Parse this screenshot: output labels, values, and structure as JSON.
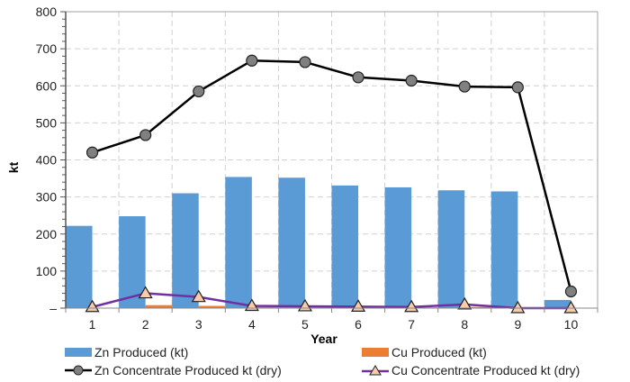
{
  "chart_data": {
    "type": "bar",
    "title": "",
    "xlabel": "Year",
    "ylabel": "kt",
    "ylim": [
      0,
      800
    ],
    "yticks": [
      0,
      100,
      200,
      300,
      400,
      500,
      600,
      700,
      800
    ],
    "ytick_labels": [
      "–",
      "100",
      "200",
      "300",
      "400",
      "500",
      "600",
      "700",
      "800"
    ],
    "categories": [
      "1",
      "2",
      "3",
      "4",
      "5",
      "6",
      "7",
      "8",
      "9",
      "10"
    ],
    "grid": true,
    "legend_position": "bottom",
    "series": [
      {
        "name": "Zn Produced (kt)",
        "kind": "bar",
        "color": "#5B9BD5",
        "values": [
          222,
          248,
          310,
          354,
          352,
          331,
          326,
          318,
          315,
          22
        ]
      },
      {
        "name": "Cu Produced (kt)",
        "kind": "bar",
        "color": "#ED7D31",
        "values": [
          0,
          8,
          6,
          3,
          2,
          2,
          2,
          3,
          0,
          0
        ]
      },
      {
        "name": "Zn Concentrate Produced kt (dry)",
        "kind": "line",
        "color": "#000000",
        "marker": "circle",
        "marker_color": "#808080",
        "values": [
          420,
          467,
          585,
          668,
          664,
          623,
          614,
          598,
          596,
          45
        ]
      },
      {
        "name": "Cu Concentrate Produced kt (dry)",
        "kind": "line",
        "color": "#7030A0",
        "marker": "triangle",
        "marker_color": "#F8CBAD",
        "values": [
          3,
          40,
          30,
          6,
          5,
          4,
          3,
          10,
          0,
          0
        ]
      }
    ]
  }
}
